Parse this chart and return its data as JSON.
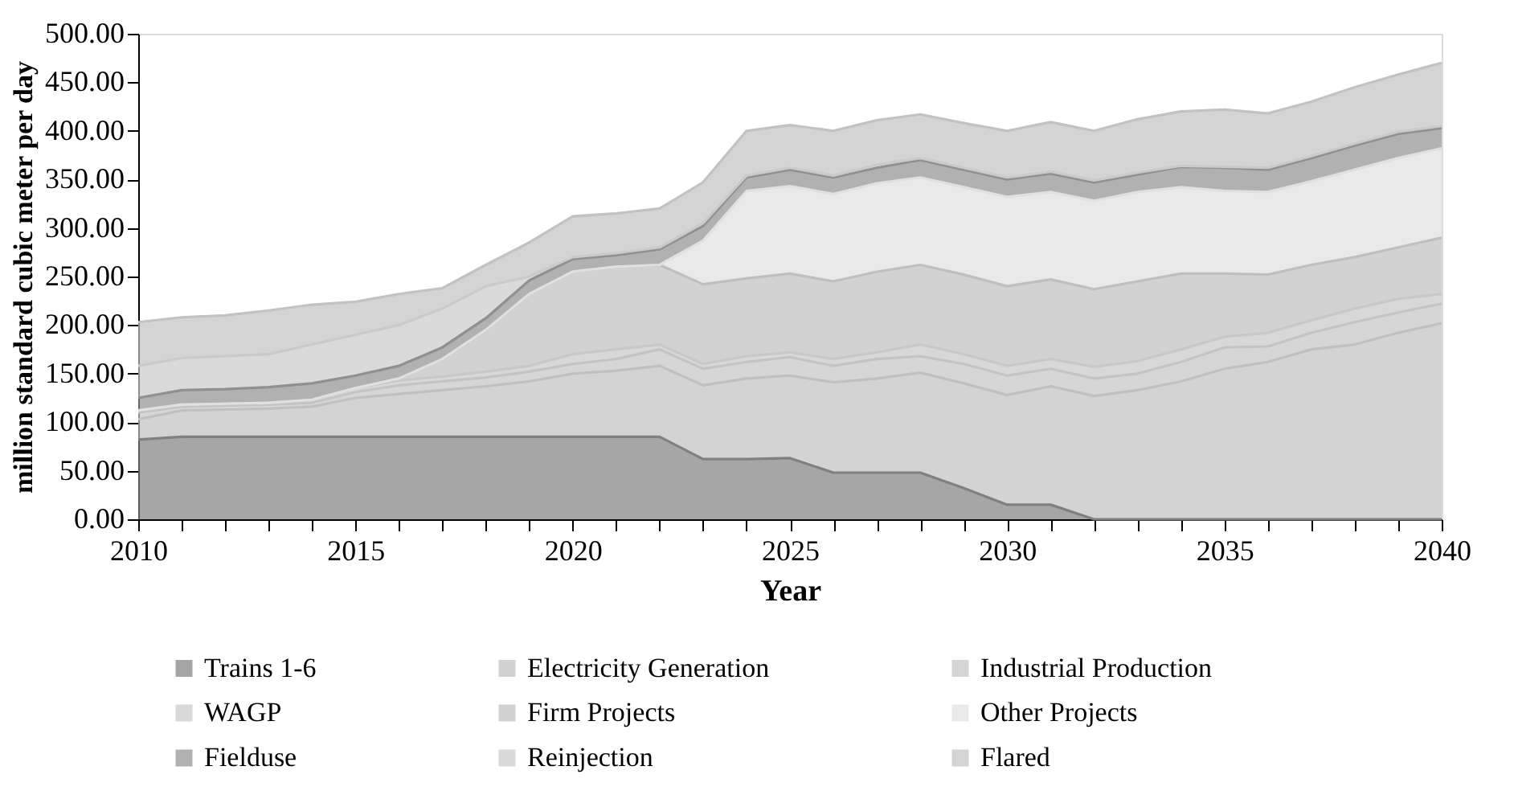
{
  "chart_data": {
    "type": "area",
    "stacked": true,
    "xlabel": "Year",
    "ylabel": "million standard cubic meter per day",
    "x": [
      2010,
      2011,
      2012,
      2013,
      2014,
      2015,
      2016,
      2017,
      2018,
      2019,
      2020,
      2021,
      2022,
      2023,
      2024,
      2025,
      2026,
      2027,
      2028,
      2029,
      2030,
      2031,
      2032,
      2033,
      2034,
      2035,
      2036,
      2037,
      2038,
      2039,
      2040
    ],
    "xlim": [
      2010,
      2040
    ],
    "xticks": [
      2010,
      {
        "value": 2011,
        "label": null
      },
      {
        "value": 2012,
        "label": null
      },
      {
        "value": 2013,
        "label": null
      },
      {
        "value": 2014,
        "label": null
      },
      2015,
      {
        "value": 2016,
        "label": null
      },
      {
        "value": 2017,
        "label": null
      },
      {
        "value": 2018,
        "label": null
      },
      {
        "value": 2019,
        "label": null
      },
      2020,
      {
        "value": 2021,
        "label": null
      },
      {
        "value": 2022,
        "label": null
      },
      {
        "value": 2023,
        "label": null
      },
      {
        "value": 2024,
        "label": null
      },
      2025,
      {
        "value": 2026,
        "label": null
      },
      {
        "value": 2027,
        "label": null
      },
      {
        "value": 2028,
        "label": null
      },
      {
        "value": 2029,
        "label": null
      },
      2030,
      {
        "value": 2031,
        "label": null
      },
      {
        "value": 2032,
        "label": null
      },
      {
        "value": 2033,
        "label": null
      },
      {
        "value": 2034,
        "label": null
      },
      2035,
      {
        "value": 2036,
        "label": null
      },
      {
        "value": 2037,
        "label": null
      },
      {
        "value": 2038,
        "label": null
      },
      {
        "value": 2039,
        "label": null
      },
      2040
    ],
    "ylim": [
      0,
      500
    ],
    "yticks": [
      {
        "value": 0,
        "label": "0.00"
      },
      {
        "value": 50,
        "label": "50.00"
      },
      {
        "value": 100,
        "label": "100.00"
      },
      {
        "value": 150,
        "label": "150.00"
      },
      {
        "value": 200,
        "label": "200.00"
      },
      {
        "value": 250,
        "label": "250.00"
      },
      {
        "value": 300,
        "label": "300.00"
      },
      {
        "value": 350,
        "label": "350.00"
      },
      {
        "value": 400,
        "label": "400.00"
      },
      {
        "value": 450,
        "label": "450.00"
      },
      {
        "value": 500,
        "label": "500.00"
      }
    ],
    "grid": false,
    "legend": "bottom",
    "line_style": "solid",
    "series": [
      {
        "name": "Trains 1-6",
        "color": "#808080",
        "values": [
          82,
          85,
          85,
          85,
          85,
          85,
          85,
          85,
          85,
          85,
          85,
          85,
          85,
          62,
          62,
          63,
          48,
          48,
          48,
          32,
          15,
          15,
          0,
          0,
          0,
          0,
          0,
          0,
          0,
          0,
          0
        ]
      },
      {
        "name": "Electricity Generation",
        "color": "#c0c0c0",
        "values": [
          21,
          27,
          28,
          29,
          31,
          40,
          44,
          48,
          52,
          57,
          65,
          68,
          73,
          76,
          83,
          85,
          93,
          97,
          103,
          108,
          113,
          122,
          127,
          133,
          142,
          155,
          162,
          175,
          180,
          192,
          202
        ]
      },
      {
        "name": "Industrial Production",
        "color": "#c4c4c4",
        "values": [
          7,
          4,
          4,
          4,
          4,
          6,
          9,
          9,
          9,
          10,
          10,
          12,
          17,
          17,
          17,
          19,
          17,
          20,
          17,
          20,
          20,
          18,
          18,
          17,
          20,
          22,
          16,
          17,
          23,
          21,
          20
        ]
      },
      {
        "name": "WAGP",
        "color": "#c8c8c8",
        "values": [
          2,
          2,
          2,
          2,
          3,
          4,
          5,
          5,
          6,
          6,
          10,
          10,
          5,
          5,
          6,
          5,
          7,
          7,
          12,
          10,
          10,
          10,
          12,
          13,
          13,
          11,
          14,
          13,
          14,
          14,
          10
        ]
      },
      {
        "name": "Firm Projects",
        "color": "#bfbfbf",
        "values": [
          0,
          0,
          0,
          0,
          0,
          0,
          2,
          18,
          43,
          74,
          85,
          85,
          82,
          82,
          80,
          81,
          80,
          83,
          82,
          82,
          82,
          82,
          80,
          82,
          78,
          65,
          60,
          57,
          53,
          53,
          58
        ]
      },
      {
        "name": "Other Projects",
        "color": "#e0e0e0",
        "values": [
          0,
          0,
          0,
          0,
          0,
          0,
          0,
          0,
          0,
          0,
          0,
          0,
          0,
          45,
          90,
          90,
          90,
          91,
          90,
          90,
          92,
          90,
          91,
          92,
          89,
          85,
          85,
          86,
          90,
          92,
          92
        ]
      },
      {
        "name": "Fielduse",
        "color": "#909090",
        "values": [
          13,
          15,
          15,
          16,
          17,
          13,
          13,
          12,
          12,
          14,
          13,
          12,
          16,
          15,
          14,
          17,
          17,
          16,
          18,
          18,
          18,
          19,
          19,
          18,
          21,
          24,
          23,
          24,
          25,
          25,
          21
        ]
      },
      {
        "name": "Reinjection",
        "color": "#cacaca",
        "values": [
          33,
          33,
          34,
          34,
          40,
          42,
          42,
          40,
          33,
          4,
          2,
          2,
          2,
          3,
          2,
          2,
          2,
          3,
          2,
          2,
          2,
          2,
          2,
          2,
          1,
          1,
          2,
          2,
          2,
          2,
          2
        ]
      },
      {
        "name": "Flared",
        "color": "#c2c2c2",
        "values": [
          45,
          42,
          42,
          45,
          41,
          34,
          32,
          21,
          22,
          35,
          42,
          41,
          40,
          42,
          46,
          44,
          46,
          46,
          45,
          46,
          48,
          51,
          51,
          55,
          56,
          59,
          56,
          56,
          58,
          59,
          65
        ]
      }
    ]
  }
}
